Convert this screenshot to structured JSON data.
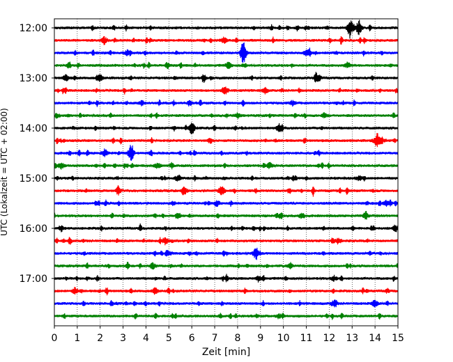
{
  "chart_data": {
    "type": "line",
    "title": "",
    "xlabel": "Zeit  [min]",
    "ylabel": "UTC (Lokalzeit = UTC + 02:00)",
    "xlim": [
      0,
      15
    ],
    "x_ticks": [
      "0",
      "1",
      "2",
      "3",
      "4",
      "5",
      "6",
      "7",
      "8",
      "9",
      "10",
      "11",
      "12",
      "13",
      "14",
      "15"
    ],
    "y_tick_labels": [
      "12:00",
      "13:00",
      "14:00",
      "15:00",
      "16:00",
      "17:00"
    ],
    "grid": "vertical dotted",
    "colors": {
      "cycle": [
        "#000000",
        "#ff0000",
        "#0000ff",
        "#008000"
      ]
    },
    "series": [
      {
        "start": "12:00",
        "color": "#000000",
        "events": [
          [
            12.9,
            1.0
          ],
          [
            13.3,
            0.8
          ]
        ]
      },
      {
        "start": "12:15",
        "color": "#ff0000",
        "events": [
          [
            2.2,
            0.3
          ],
          [
            7.4,
            0.3
          ]
        ]
      },
      {
        "start": "12:30",
        "color": "#0000ff",
        "events": [
          [
            8.25,
            1.3
          ],
          [
            3.2,
            0.3
          ],
          [
            11.0,
            0.3
          ]
        ]
      },
      {
        "start": "12:45",
        "color": "#008000",
        "events": [
          [
            7.6,
            0.35
          ],
          [
            12.8,
            0.3
          ]
        ]
      },
      {
        "start": "13:00",
        "color": "#000000",
        "events": [
          [
            0.5,
            0.35
          ],
          [
            2.0,
            0.3
          ],
          [
            11.5,
            0.3
          ]
        ]
      },
      {
        "start": "13:15",
        "color": "#ff0000",
        "events": [
          [
            7.4,
            0.35
          ],
          [
            9.2,
            0.3
          ]
        ]
      },
      {
        "start": "13:30",
        "color": "#0000ff",
        "events": [
          [
            3.8,
            0.25
          ],
          [
            10.4,
            0.25
          ]
        ]
      },
      {
        "start": "13:45",
        "color": "#008000",
        "events": [
          [
            8.0,
            0.3
          ],
          [
            11.8,
            0.25
          ]
        ]
      },
      {
        "start": "14:00",
        "color": "#000000",
        "events": [
          [
            6.0,
            0.8
          ],
          [
            9.8,
            0.3
          ]
        ]
      },
      {
        "start": "14:15",
        "color": "#ff0000",
        "events": [
          [
            14.1,
            0.8
          ],
          [
            6.8,
            0.25
          ]
        ]
      },
      {
        "start": "14:30",
        "color": "#0000ff",
        "events": [
          [
            3.35,
            0.9
          ],
          [
            2.2,
            0.4
          ]
        ]
      },
      {
        "start": "14:45",
        "color": "#008000",
        "events": [
          [
            0.3,
            0.35
          ],
          [
            4.5,
            0.3
          ],
          [
            9.4,
            0.3
          ]
        ]
      },
      {
        "start": "15:00",
        "color": "#000000",
        "events": [
          [
            5.4,
            0.35
          ],
          [
            13.3,
            0.25
          ]
        ]
      },
      {
        "start": "15:15",
        "color": "#ff0000",
        "events": [
          [
            7.3,
            0.6
          ],
          [
            5.7,
            0.3
          ],
          [
            2.8,
            0.3
          ]
        ]
      },
      {
        "start": "15:30",
        "color": "#0000ff",
        "events": [
          [
            7.1,
            0.3
          ],
          [
            14.5,
            0.3
          ]
        ]
      },
      {
        "start": "15:45",
        "color": "#008000",
        "events": [
          [
            10.8,
            0.3
          ],
          [
            13.6,
            0.3
          ]
        ]
      },
      {
        "start": "16:00",
        "color": "#000000",
        "events": [
          [
            0.3,
            0.3
          ],
          [
            14.9,
            0.35
          ]
        ]
      },
      {
        "start": "16:15",
        "color": "#ff0000",
        "events": [
          [
            4.85,
            0.4
          ],
          [
            12.4,
            0.3
          ]
        ]
      },
      {
        "start": "16:30",
        "color": "#0000ff",
        "events": [
          [
            8.8,
            0.4
          ],
          [
            5.0,
            0.25
          ]
        ]
      },
      {
        "start": "16:45",
        "color": "#008000",
        "events": [
          [
            4.3,
            0.3
          ],
          [
            10.3,
            0.25
          ]
        ]
      },
      {
        "start": "17:00",
        "color": "#000000",
        "events": [
          [
            8.9,
            0.3
          ],
          [
            12.2,
            0.25
          ]
        ]
      },
      {
        "start": "17:15",
        "color": "#ff0000",
        "events": [
          [
            0.9,
            0.35
          ],
          [
            4.4,
            0.3
          ]
        ]
      },
      {
        "start": "17:30",
        "color": "#0000ff",
        "events": [
          [
            12.2,
            0.35
          ],
          [
            14.0,
            0.4
          ]
        ]
      },
      {
        "start": "17:45",
        "color": "#008000",
        "events": [
          [
            9.8,
            0.25
          ]
        ]
      }
    ]
  }
}
